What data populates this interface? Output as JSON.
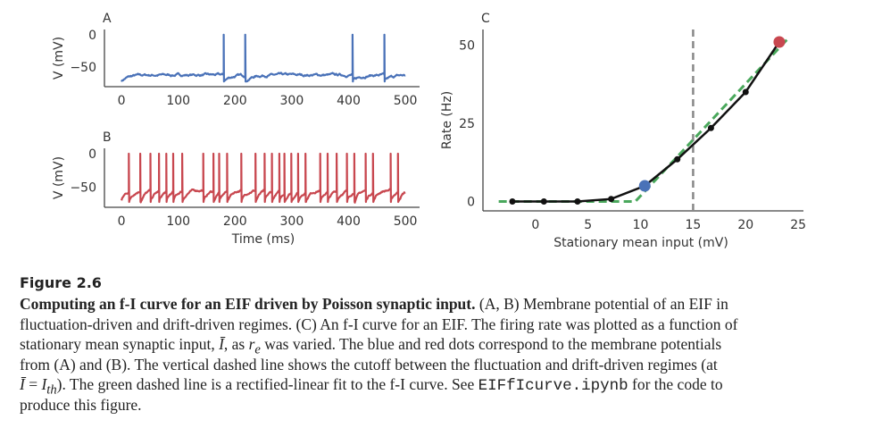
{
  "chart_data": [
    {
      "panel": "A",
      "type": "line",
      "ylabel": "V (mV)",
      "xlabel": "",
      "xticks": [
        0,
        100,
        200,
        300,
        400,
        500
      ],
      "yticks": [
        0,
        -50
      ],
      "xlim": [
        -30,
        525
      ],
      "ylim": [
        -80,
        8
      ],
      "color": "#4a72b8",
      "spike_times_ms": [
        180,
        218,
        407,
        463
      ],
      "regime": "fluctuation-driven"
    },
    {
      "panel": "B",
      "type": "line",
      "ylabel": "V (mV)",
      "xlabel": "Time (ms)",
      "xticks": [
        0,
        100,
        200,
        300,
        400,
        500
      ],
      "yticks": [
        0,
        -50
      ],
      "xlim": [
        -30,
        525
      ],
      "ylim": [
        -80,
        8
      ],
      "color": "#c8474f",
      "spike_times_ms": [
        13,
        33,
        51,
        66,
        79,
        91,
        107,
        144,
        162,
        172,
        186,
        211,
        236,
        252,
        265,
        278,
        287,
        299,
        311,
        324,
        350,
        363,
        379,
        397,
        410,
        430,
        443,
        474,
        487
      ],
      "regime": "drift-driven"
    },
    {
      "panel": "C",
      "type": "line",
      "ylabel": "Rate (Hz)",
      "xlabel": "Stationary mean input (mV)",
      "xticks": [
        0,
        5,
        10,
        15,
        20,
        25
      ],
      "yticks": [
        0,
        25,
        50
      ],
      "xlim": [
        -5,
        25.5
      ],
      "ylim": [
        -3,
        55
      ],
      "series": [
        {
          "x": [
            -2.2,
            0.8,
            4,
            7.2,
            10.4,
            13.5,
            16.7,
            20,
            23.2
          ],
          "y": [
            0,
            0,
            0,
            0.8,
            5,
            13.5,
            23.5,
            35,
            51
          ],
          "color": "#111111"
        }
      ],
      "fit": {
        "x": [
          -3.5,
          9.5,
          24
        ],
        "y": [
          0,
          0,
          52
        ],
        "color": "#4aa85c"
      },
      "cutoff_x": 15,
      "cutoff_color": "#888888",
      "highlight": [
        {
          "x": 10.4,
          "y": 5,
          "color": "#4a72b8"
        },
        {
          "x": 23.2,
          "y": 51,
          "color": "#c8474f"
        }
      ]
    }
  ],
  "caption": {
    "figure_label": "Figure 2.6",
    "title": "Computing an f-I curve for an EIF driven by Poisson synaptic input.",
    "l1": " (A, B) Membrane potential of an EIF in",
    "l2": "fluctuation-driven and drift-driven regimes. (C) An f-I curve for an EIF. The firing rate was plotted as a function of",
    "l3a": "stationary mean synaptic input, ",
    "l3b": "Ī",
    "l3c": ", as ",
    "l3d": "r",
    "l3e": "e",
    "l3f": " was varied. The blue and red dots correspond to the membrane potentials",
    "l4": "from (A) and (B). The vertical dashed line shows the cutoff between the fluctuation and drift-driven regimes (at",
    "l5a": "Ī",
    "l5b": " = ",
    "l5c": "I",
    "l5d": "th",
    "l5e": "). The green dashed line is a rectified-linear fit to the f-I curve. See ",
    "l5f": "EIFfIcurve.ipynb",
    "l5g": " for the code to",
    "l6": "produce this figure."
  }
}
